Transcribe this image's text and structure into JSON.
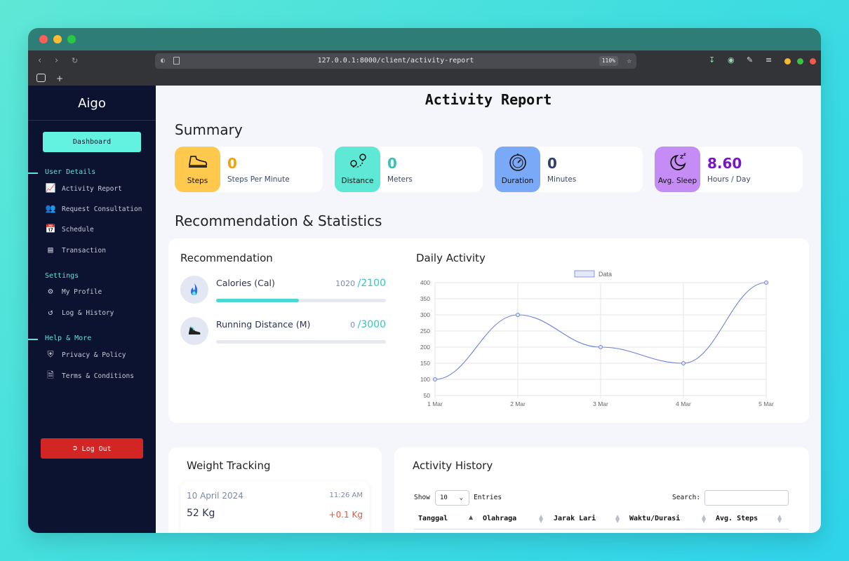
{
  "browser": {
    "url": "127.0.0.1:8000/client/activity-report",
    "zoom": "110%"
  },
  "sidebar": {
    "brand": "Aigo",
    "dashboard": "Dashboard",
    "sections": [
      {
        "title": "User Details",
        "items": [
          "Activity Report",
          "Request Consultation",
          "Schedule",
          "Transaction"
        ]
      },
      {
        "title": "Settings",
        "items": [
          "My Profile",
          "Log & History"
        ]
      },
      {
        "title": "Help & More",
        "items": [
          "Privacy & Policy",
          "Terms & Conditions"
        ]
      }
    ],
    "logout": "Log Out"
  },
  "page": {
    "title": "Activity Report",
    "summary_heading": "Summary",
    "rec_heading": "Recommendation & Statistics"
  },
  "summary": [
    {
      "label": "Steps",
      "value": "0",
      "unit": "Steps Per Minute",
      "bg": "#ffc94d",
      "color": "#f2a20c"
    },
    {
      "label": "Distance",
      "value": "0",
      "unit": "Meters",
      "bg": "#5ee8d6",
      "color": "#35c3be"
    },
    {
      "label": "Duration",
      "value": "0",
      "unit": "Minutes",
      "bg": "#7aa9f7",
      "color": "#2f3f6e"
    },
    {
      "label": "Avg. Sleep",
      "value": "8.60",
      "unit": "Hours / Day",
      "bg": "#c58cf5",
      "color": "#7a14c9"
    }
  ],
  "recommendation": {
    "title": "Recommendation",
    "items": [
      {
        "name": "Calories (Cal)",
        "current": "1020",
        "target": "/2100",
        "progress": 0.4857
      },
      {
        "name": "Running Distance (M)",
        "current": "0",
        "target": "/3000",
        "progress": 0
      }
    ]
  },
  "chart_data": {
    "type": "line",
    "title": "Daily Activity",
    "x": [
      "1 Mar",
      "2 Mar",
      "3 Mar",
      "4 Mar",
      "5 Mar"
    ],
    "series": [
      {
        "name": "Data",
        "values": [
          100,
          300,
          200,
          150,
          400
        ]
      }
    ],
    "yticks": [
      "400",
      "350",
      "300",
      "250",
      "200",
      "150",
      "100",
      "50"
    ],
    "ylim": [
      50,
      400
    ],
    "grid": true,
    "legend": "top",
    "color": "#6f84d8"
  },
  "weight": {
    "title": "Weight Tracking",
    "date": "10 April 2024",
    "time": "11:26 AM",
    "value": "52 Kg",
    "delta": "+0.1 Kg"
  },
  "history": {
    "title": "Activity History",
    "show": "Show",
    "entries_value": "10",
    "entries": "Entries",
    "search": "Search:",
    "columns": [
      "Tanggal",
      "Olahraga",
      "Jarak Lari",
      "Waktu/Durasi",
      "Avg. Steps"
    ]
  }
}
